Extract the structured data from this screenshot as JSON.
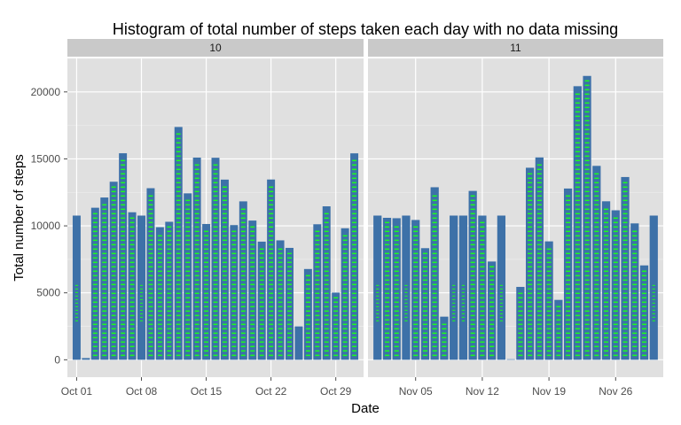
{
  "chart_data": {
    "type": "bar",
    "title": "Histogram of total number of steps taken each day with no data missing",
    "xlabel": "Date",
    "ylabel": "Total number of steps",
    "ylim": [
      -1300,
      22500
    ],
    "y_ticks": [
      0,
      5000,
      10000,
      15000,
      20000
    ],
    "y_tick_labels": [
      "0",
      "5000",
      "10000",
      "15000",
      "20000"
    ],
    "grid": true,
    "legend": "none",
    "colors": {
      "bar_fill": "#3d71a8",
      "bar_stripe": "#1aff1a",
      "panel_bg": "#e0e0e0",
      "strip_bg": "#c9c9c9",
      "grid": "#ffffff"
    },
    "facets": [
      {
        "label": "10",
        "xlim": [
          0,
          32
        ],
        "x_ticks": [
          1,
          8,
          15,
          22,
          29
        ],
        "x_tick_labels": [
          "Oct 01",
          "Oct 08",
          "Oct 15",
          "Oct 22",
          "Oct 29"
        ],
        "days": [
          1,
          2,
          3,
          4,
          5,
          6,
          7,
          8,
          9,
          10,
          11,
          12,
          13,
          14,
          15,
          16,
          17,
          18,
          19,
          20,
          21,
          22,
          23,
          24,
          25,
          26,
          27,
          28,
          29,
          30,
          31
        ],
        "values": [
          10766,
          126,
          11352,
          12116,
          13294,
          15420,
          11015,
          10766,
          12811,
          9900,
          10304,
          17382,
          12426,
          15098,
          10139,
          15084,
          13452,
          10056,
          11829,
          10395,
          8821,
          13460,
          8918,
          8355,
          2492,
          6778,
          10119,
          11458,
          5018,
          9819,
          15414
        ]
      },
      {
        "label": "11",
        "xlim": [
          0,
          31
        ],
        "x_ticks": [
          5,
          12,
          19,
          26
        ],
        "x_tick_labels": [
          "Nov 05",
          "Nov 12",
          "Nov 19",
          "Nov 26"
        ],
        "days": [
          1,
          2,
          3,
          4,
          5,
          6,
          7,
          8,
          9,
          10,
          11,
          12,
          13,
          14,
          15,
          16,
          17,
          18,
          19,
          20,
          21,
          22,
          23,
          24,
          25,
          26,
          27,
          28,
          29,
          30
        ],
        "values": [
          10766,
          10600,
          10571,
          10766,
          10439,
          8334,
          12883,
          3219,
          10766,
          10766,
          12608,
          10765,
          7336,
          10766,
          41,
          5441,
          14339,
          15110,
          8841,
          4472,
          12787,
          20427,
          21194,
          14478,
          11834,
          11162,
          13646,
          10183,
          7047,
          10766
        ]
      }
    ]
  }
}
